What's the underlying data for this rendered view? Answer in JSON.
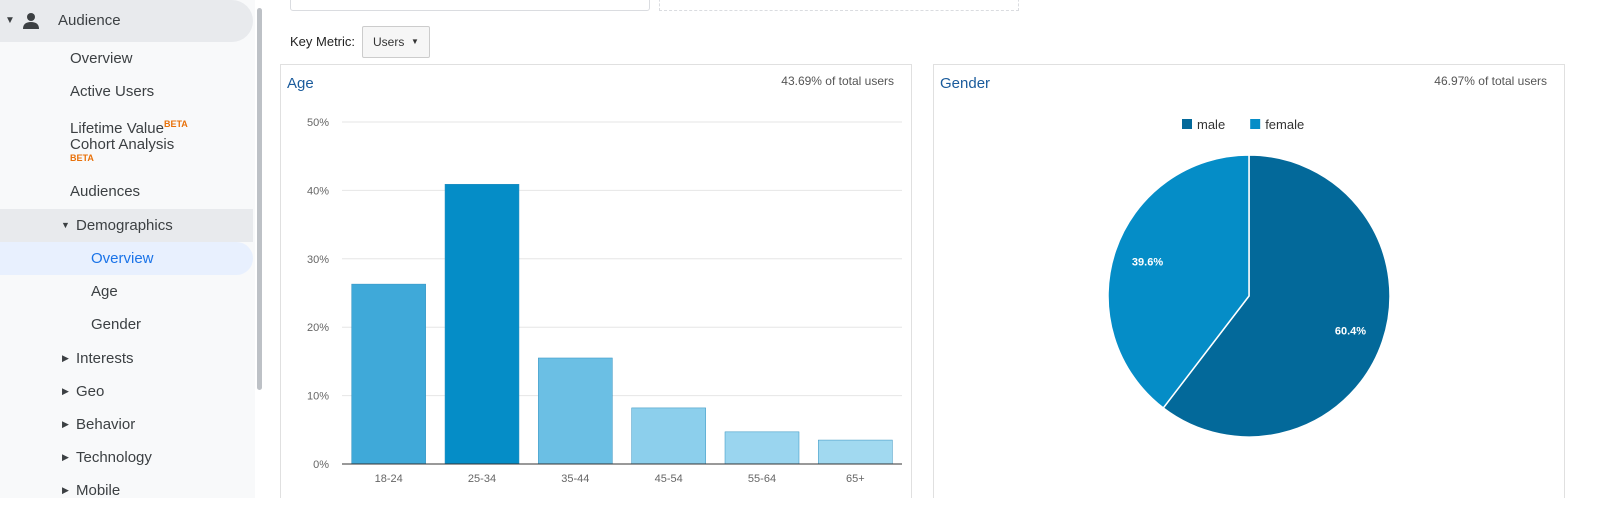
{
  "sidebar": {
    "section": "Audience",
    "items": [
      "Overview",
      "Active Users",
      "Lifetime Value",
      "Cohort Analysis",
      "Audiences",
      "Demographics",
      "Overview",
      "Age",
      "Gender",
      "Interests",
      "Geo",
      "Behavior",
      "Technology",
      "Mobile"
    ],
    "badge": "BETA"
  },
  "key_metric": {
    "label": "Key Metric:",
    "value": "Users"
  },
  "chart_data": [
    {
      "type": "bar",
      "title": "Age",
      "subtitle": "43.69% of total users",
      "categories": [
        "18-24",
        "25-34",
        "35-44",
        "45-54",
        "55-64",
        "65+"
      ],
      "values": [
        26.3,
        40.9,
        15.5,
        8.2,
        4.7,
        3.5
      ],
      "colors": [
        "#3fa9d9",
        "#058dc7",
        "#6bbfe4",
        "#8ccfec",
        "#9ad5ef",
        "#a1d9f0"
      ],
      "ylim": [
        0,
        50
      ],
      "yticks": [
        {
          "value": 0,
          "label": "0%"
        },
        {
          "value": 10,
          "label": "10%"
        },
        {
          "value": 20,
          "label": "20%"
        },
        {
          "value": 30,
          "label": "30%"
        },
        {
          "value": 40,
          "label": "40%"
        },
        {
          "value": 50,
          "label": "50%"
        }
      ],
      "grid": true
    },
    {
      "type": "pie",
      "title": "Gender",
      "subtitle": "46.97% of total users",
      "categories": [
        "male",
        "female"
      ],
      "values": [
        60.4,
        39.6
      ],
      "value_labels": [
        "60.4%",
        "39.6%"
      ],
      "colors": [
        "#03699a",
        "#058dc7"
      ],
      "legend": "top"
    }
  ]
}
